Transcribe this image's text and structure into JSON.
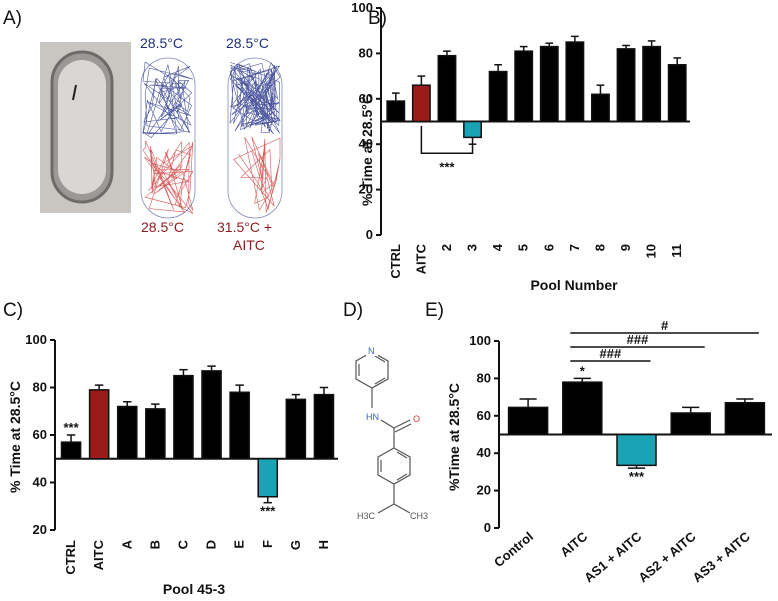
{
  "panels": {
    "a": {
      "label": "A)",
      "top_left": "28.5°C",
      "top_right": "28.5°C",
      "bottom_left": "28.5°C",
      "bottom_right_line1": "31.5°C +",
      "bottom_right_line2": "AITC",
      "colors": {
        "cold_trace": "#2d3a8c",
        "warm_trace": "#d23a3a"
      }
    },
    "d": {
      "label": "D)",
      "atoms": {
        "n_ring": "N",
        "nh": "HN",
        "o": "O",
        "ch3_left": "H3C",
        "ch3_right": "CH3"
      }
    }
  },
  "chart_data": [
    {
      "panel_label": "B)",
      "type": "bar",
      "categories": [
        "CTRL",
        "AITC",
        "2",
        "3",
        "4",
        "5",
        "6",
        "7",
        "8",
        "9",
        "10",
        "11"
      ],
      "values": [
        59,
        66,
        79,
        43,
        72,
        81,
        83,
        85,
        62,
        82,
        83,
        75
      ],
      "errors": [
        3.5,
        4,
        2,
        3,
        3,
        2,
        1.5,
        2.5,
        4,
        1.5,
        2.5,
        3
      ],
      "bar_colors": [
        "#000000",
        "#9b1b1b",
        "#000000",
        "#1aa3b5",
        "#000000",
        "#000000",
        "#000000",
        "#000000",
        "#000000",
        "#000000",
        "#000000",
        "#000000"
      ],
      "baseline": 50,
      "ylim": [
        0,
        100
      ],
      "yticks": [
        0,
        20,
        40,
        60,
        80,
        100
      ],
      "ylabel": "% Time at 28.5°C",
      "xlabel": "Pool Number",
      "annotations": [
        {
          "text": "***",
          "from": "AITC",
          "to": "3"
        }
      ]
    },
    {
      "panel_label": "C)",
      "type": "bar",
      "categories": [
        "CTRL",
        "AITC",
        "A",
        "B",
        "C",
        "D",
        "E",
        "F",
        "G",
        "H"
      ],
      "values": [
        57,
        79,
        72,
        71,
        85,
        87,
        78,
        34,
        75,
        77
      ],
      "errors": [
        3,
        2,
        2,
        2,
        2.5,
        2,
        3,
        2.5,
        2,
        3
      ],
      "bar_colors": [
        "#000000",
        "#9b1b1b",
        "#000000",
        "#000000",
        "#000000",
        "#000000",
        "#000000",
        "#1aa3b5",
        "#000000",
        "#000000"
      ],
      "baseline": 50,
      "ylim": [
        20,
        100
      ],
      "yticks": [
        20,
        40,
        60,
        80,
        100
      ],
      "ylabel": "% Time at 28.5°C",
      "xlabel": "Pool 45-3",
      "annotations": [
        {
          "text": "***",
          "at": "CTRL"
        },
        {
          "text": "***",
          "at": "F"
        }
      ]
    },
    {
      "panel_label": "E)",
      "type": "bar",
      "categories": [
        "Control",
        "AITC",
        "AS1 + AITC",
        "AS2 + AITC",
        "AS3 + AITC"
      ],
      "values": [
        64.5,
        78,
        33.5,
        61.5,
        67
      ],
      "errors": [
        4.5,
        2,
        1.5,
        3,
        2
      ],
      "bar_colors": [
        "#000000",
        "#000000",
        "#1aa3b5",
        "#000000",
        "#000000"
      ],
      "baseline": 50,
      "ylim": [
        0,
        100
      ],
      "yticks": [
        0,
        20,
        40,
        60,
        80,
        100
      ],
      "ylabel": "%Time at 28.5°C",
      "xlabel": "",
      "annotations": [
        {
          "text": "*",
          "at": "AITC"
        },
        {
          "text": "***",
          "at": "AS1 + AITC"
        },
        {
          "text": "###",
          "from": "AITC",
          "to": "AS1 + AITC"
        },
        {
          "text": "###",
          "from": "AITC",
          "to": "AS2 + AITC"
        },
        {
          "text": "#",
          "from": "AITC",
          "to": "AS3 + AITC"
        }
      ]
    }
  ]
}
